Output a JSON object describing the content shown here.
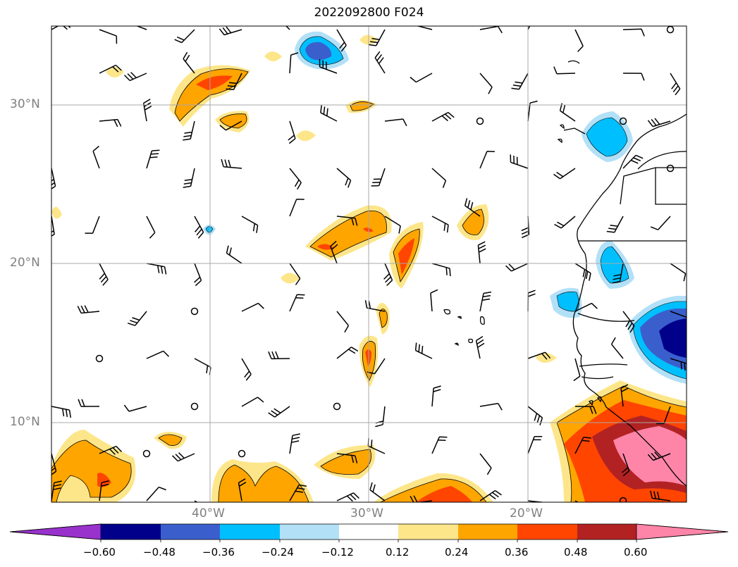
{
  "title": "2022092800 F024",
  "lat_ticks": [
    "30°N",
    "20°N",
    "10°N"
  ],
  "lon_ticks": [
    "40°W",
    "30°W",
    "20°W"
  ],
  "colorbar": {
    "ticks": [
      "−0.60",
      "−0.48",
      "−0.36",
      "−0.24",
      "−0.12",
      "0.12",
      "0.24",
      "0.36",
      "0.48",
      "0.60"
    ],
    "colors": [
      "#9932cc",
      "#00008b",
      "#3a5fcd",
      "#00bfff",
      "#b2e0f7",
      "#ffffff",
      "#fde68a",
      "#ffa500",
      "#ff4500",
      "#b22222",
      "#ff85a8"
    ]
  },
  "map": {
    "extent": {
      "lon": [
        -50,
        -10
      ],
      "lat": [
        5,
        35
      ]
    },
    "gridlines": true
  }
}
